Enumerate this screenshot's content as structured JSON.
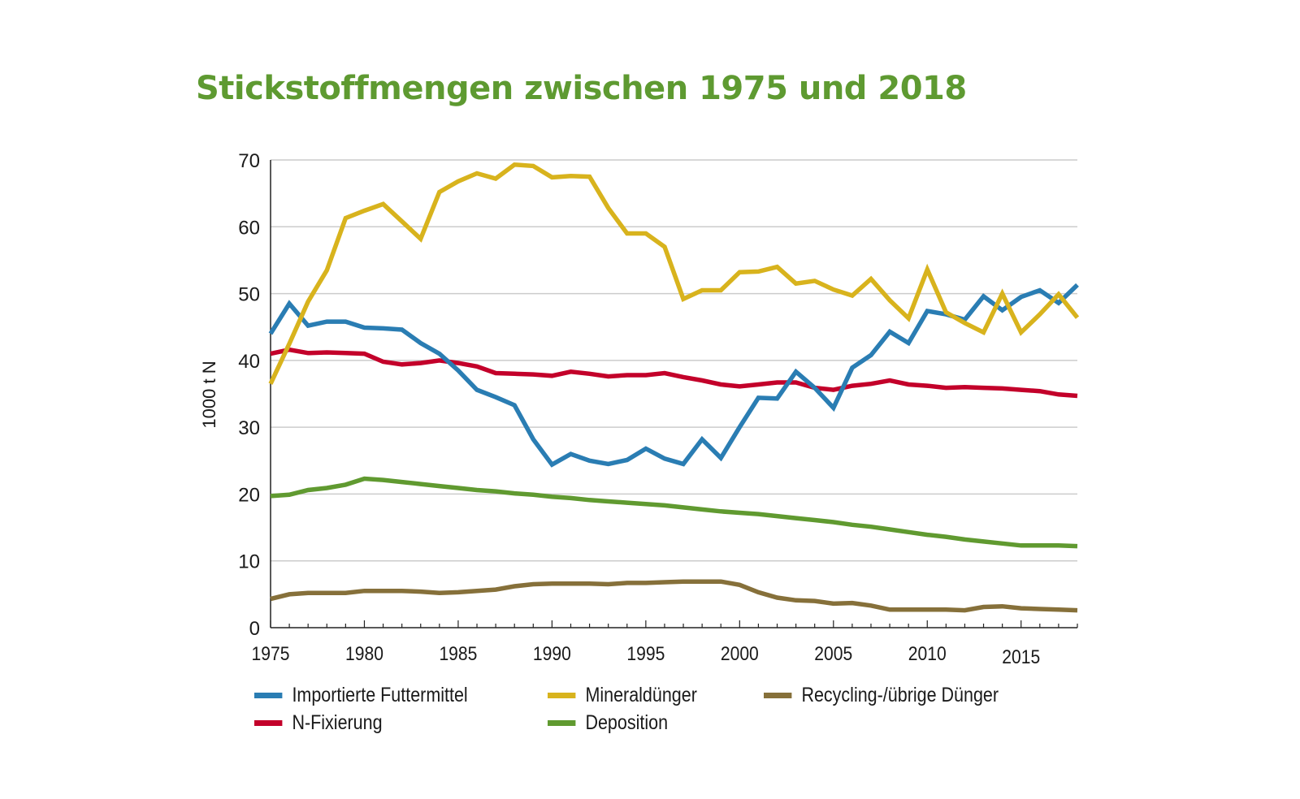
{
  "chart_data": {
    "type": "line",
    "title": "Stickstoffmengen zwischen 1975 und 2018",
    "xlabel": "",
    "ylabel": "1000 t N",
    "xlim": [
      1975,
      2018
    ],
    "ylim": [
      0,
      70
    ],
    "yticks": [
      0,
      10,
      20,
      30,
      40,
      50,
      60,
      70
    ],
    "xticks": [
      1975,
      1980,
      1985,
      1990,
      1995,
      2000,
      2005,
      2010,
      2015
    ],
    "grid": "horizontal",
    "legend_position": "bottom",
    "x": [
      1975,
      1976,
      1977,
      1978,
      1979,
      1980,
      1981,
      1982,
      1983,
      1984,
      1985,
      1986,
      1987,
      1988,
      1989,
      1990,
      1991,
      1992,
      1993,
      1994,
      1995,
      1996,
      1997,
      1998,
      1999,
      2000,
      2001,
      2002,
      2003,
      2004,
      2005,
      2006,
      2007,
      2008,
      2009,
      2010,
      2011,
      2012,
      2013,
      2014,
      2015,
      2016,
      2017,
      2018
    ],
    "series": [
      {
        "name": "Importierte Futtermittel",
        "color": "#2a7db3",
        "values": [
          44,
          48.5,
          45.2,
          45.8,
          45.8,
          44.9,
          44.8,
          44.6,
          42.6,
          41,
          38.5,
          35.6,
          34.5,
          33.3,
          28.2,
          24.4,
          26,
          25,
          24.5,
          25.1,
          26.8,
          25.3,
          24.5,
          28.2,
          25.4,
          30,
          34.4,
          34.3,
          38.3,
          35.9,
          32.9,
          38.9,
          40.8,
          44.3,
          42.6,
          47.4,
          46.9,
          46.1,
          49.6,
          47.5,
          49.5,
          50.5,
          48.6,
          51.3
        ]
      },
      {
        "name": "Mineraldünger",
        "color": "#d8b31d",
        "values": [
          36.5,
          42.5,
          48.8,
          53.5,
          61.3,
          62.4,
          63.4,
          60.8,
          58.2,
          65.2,
          66.8,
          68,
          67.2,
          69.3,
          69.1,
          67.4,
          67.6,
          67.5,
          62.8,
          59,
          59,
          57,
          49.2,
          50.5,
          50.5,
          53.2,
          53.3,
          54,
          51.5,
          51.9,
          50.6,
          49.7,
          52.2,
          49,
          46.3,
          53.6,
          47.2,
          45.6,
          44.2,
          50,
          44.2,
          46.9,
          49.9,
          46.4
        ]
      },
      {
        "name": "Recycling-/übrige Dünger",
        "color": "#86703a",
        "values": [
          4.3,
          5,
          5.2,
          5.2,
          5.2,
          5.5,
          5.5,
          5.5,
          5.4,
          5.2,
          5.3,
          5.5,
          5.7,
          6.2,
          6.5,
          6.6,
          6.6,
          6.6,
          6.5,
          6.7,
          6.7,
          6.8,
          6.9,
          6.9,
          6.9,
          6.4,
          5.3,
          4.5,
          4.1,
          4,
          3.6,
          3.7,
          3.3,
          2.7,
          2.7,
          2.7,
          2.7,
          2.6,
          3.1,
          3.2,
          2.9,
          2.8,
          2.7,
          2.6
        ]
      },
      {
        "name": "N-Fixierung",
        "color": "#c3002a",
        "values": [
          41,
          41.6,
          41.1,
          41.2,
          41.1,
          41,
          39.8,
          39.4,
          39.6,
          40,
          39.6,
          39.1,
          38.1,
          38,
          37.9,
          37.7,
          38.3,
          38,
          37.6,
          37.8,
          37.8,
          38.1,
          37.5,
          37,
          36.4,
          36.1,
          36.4,
          36.7,
          36.7,
          35.9,
          35.6,
          36.2,
          36.5,
          37,
          36.4,
          36.2,
          35.9,
          36,
          35.9,
          35.8,
          35.6,
          35.4,
          34.9,
          34.7
        ]
      },
      {
        "name": "Deposition",
        "color": "#609a30",
        "values": [
          19.7,
          19.9,
          20.6,
          20.9,
          21.4,
          22.3,
          22.1,
          21.8,
          21.5,
          21.2,
          20.9,
          20.6,
          20.4,
          20.1,
          19.9,
          19.6,
          19.4,
          19.1,
          18.9,
          18.7,
          18.5,
          18.3,
          18,
          17.7,
          17.4,
          17.2,
          17,
          16.7,
          16.4,
          16.1,
          15.8,
          15.4,
          15.1,
          14.7,
          14.3,
          13.9,
          13.6,
          13.2,
          12.9,
          12.6,
          12.3,
          12.3,
          12.3,
          12.2
        ]
      }
    ]
  }
}
